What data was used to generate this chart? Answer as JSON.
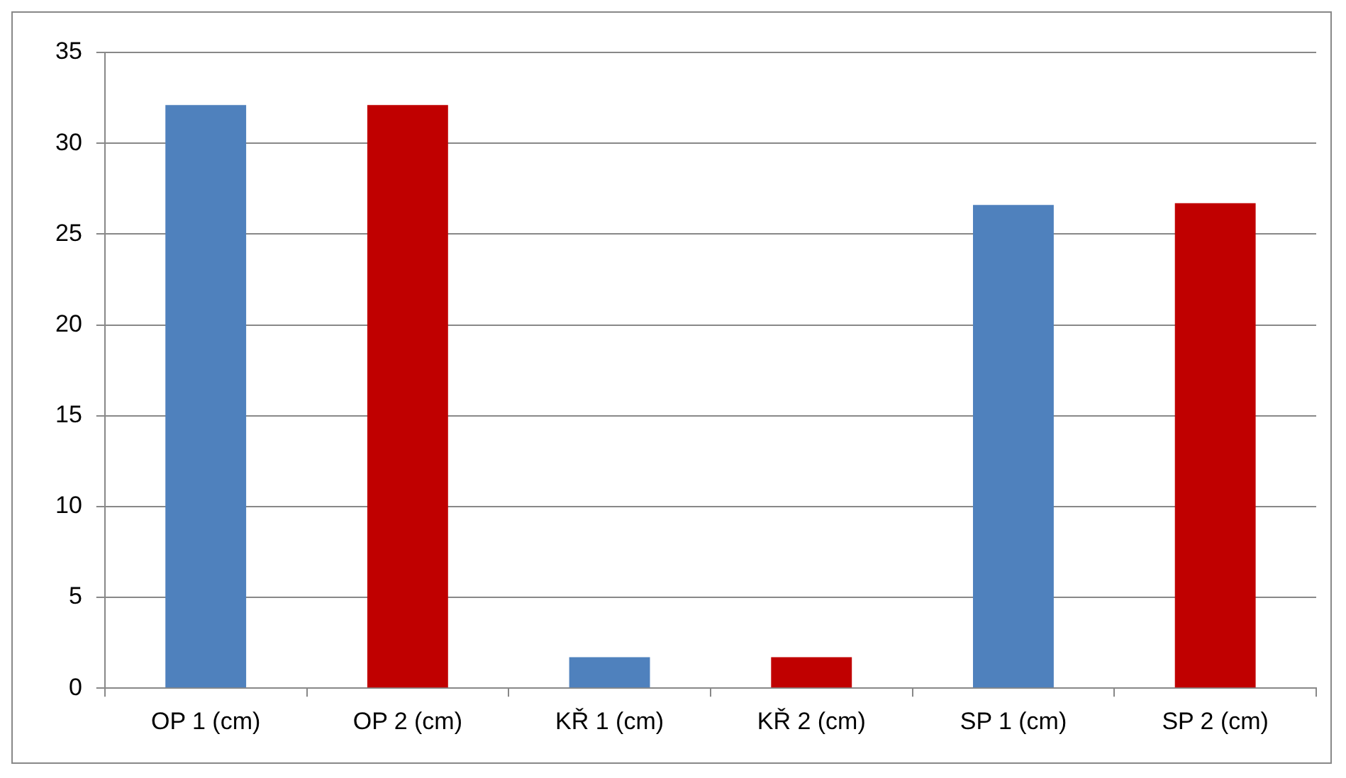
{
  "chart_data": {
    "type": "bar",
    "categories": [
      "OP 1 (cm)",
      "OP 2 (cm)",
      "KŘ 1 (cm)",
      "KŘ 2 (cm)",
      "SP 1 (cm)",
      "SP 2 (cm)"
    ],
    "series": [
      {
        "colors": [
          "#4f81bd",
          "#c00000",
          "#4f81bd",
          "#c00000",
          "#4f81bd",
          "#c00000"
        ],
        "values": [
          32.1,
          32.1,
          1.7,
          1.7,
          26.6,
          26.7
        ]
      }
    ],
    "ylim": [
      0,
      35
    ],
    "yticks": [
      0,
      5,
      10,
      15,
      20,
      25,
      30,
      35
    ],
    "grid": "y",
    "legend": false
  }
}
